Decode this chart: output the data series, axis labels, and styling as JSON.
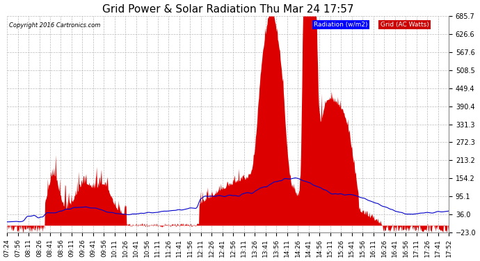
{
  "title": "Grid Power & Solar Radiation Thu Mar 24 17:57",
  "copyright": "Copyright 2016 Cartronics.com",
  "legend_items": [
    {
      "label": "Radiation (w/m2)",
      "bg": "#0000ff",
      "fg": "#ffffff"
    },
    {
      "label": "Grid (AC Watts)",
      "bg": "#cc0000",
      "fg": "#ffffff"
    }
  ],
  "ylim": [
    -23.0,
    685.7
  ],
  "yticks": [
    -23.0,
    36.0,
    95.1,
    154.2,
    213.2,
    272.3,
    331.3,
    390.4,
    449.4,
    508.5,
    567.6,
    626.6,
    685.7
  ],
  "background_color": "#ffffff",
  "plot_bg_color": "#ffffff",
  "grid_color": "#bbbbbb",
  "title_fontsize": 11,
  "axis_fontsize": 7,
  "red_fill_color": "#dd0000",
  "blue_line_color": "#0000cc",
  "x_tick_labels": [
    "07:24",
    "07:56",
    "08:11",
    "08:26",
    "08:41",
    "08:56",
    "09:11",
    "09:26",
    "09:41",
    "09:56",
    "10:11",
    "10:26",
    "10:41",
    "10:56",
    "11:11",
    "11:26",
    "11:41",
    "11:56",
    "12:11",
    "12:26",
    "12:41",
    "12:56",
    "13:11",
    "13:26",
    "13:41",
    "13:56",
    "14:11",
    "14:26",
    "14:41",
    "14:56",
    "15:11",
    "15:26",
    "15:41",
    "15:56",
    "16:11",
    "16:26",
    "16:41",
    "16:56",
    "17:11",
    "17:26",
    "17:41",
    "17:52"
  ]
}
